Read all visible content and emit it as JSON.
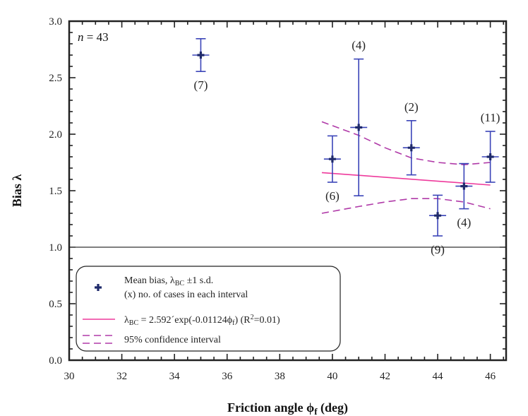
{
  "chart_data": {
    "type": "scatter",
    "title": "",
    "xlabel": "Friction angle",
    "xlabel_symbol": "ϕ",
    "xlabel_sub": "f",
    "xlabel_unit": "(deg)",
    "ylabel": "Bias λ",
    "xlim": [
      30,
      46.6
    ],
    "ylim": [
      0,
      3
    ],
    "xticks": [
      30,
      32,
      34,
      36,
      38,
      40,
      42,
      44,
      46
    ],
    "yticks": [
      "0.0",
      "0.5",
      "1.0",
      "1.5",
      "2.0",
      "2.5",
      "3.0"
    ],
    "grid": false,
    "annotation": {
      "italic": "n",
      "rest": " = 43"
    },
    "reference_line": {
      "y": 1.0,
      "color": "#555555"
    },
    "series": [
      {
        "name": "Mean bias, λBC ±1 s.d.",
        "color": "#1f2a6b",
        "errorbar_color": "#3a44b8",
        "points": [
          {
            "x": 35.0,
            "y": 2.7,
            "sd": 0.145,
            "count_label": "(7)",
            "label_pos": "below"
          },
          {
            "x": 40.0,
            "y": 1.78,
            "sd": 0.205,
            "count_label": "(6)",
            "label_pos": "below"
          },
          {
            "x": 41.0,
            "y": 2.06,
            "sd": 0.605,
            "count_label": "(4)",
            "label_pos": "above"
          },
          {
            "x": 43.0,
            "y": 1.88,
            "sd": 0.24,
            "count_label": "(2)",
            "label_pos": "above"
          },
          {
            "x": 44.0,
            "y": 1.28,
            "sd": 0.18,
            "count_label": "(9)",
            "label_pos": "below"
          },
          {
            "x": 45.0,
            "y": 1.54,
            "sd": 0.2,
            "count_label": "(4)",
            "label_pos": "below"
          },
          {
            "x": 46.0,
            "y": 1.8,
            "sd": 0.225,
            "count_label": "(11)",
            "label_pos": "above"
          }
        ]
      },
      {
        "name": "λBC = 2.592´exp(-0.01124ϕf) (R²=0.01)",
        "type": "line",
        "color": "#ee3a9c",
        "x": [
          39.6,
          46.0
        ],
        "y": [
          1.66,
          1.55
        ]
      },
      {
        "name": "95% confidence interval",
        "type": "line",
        "dash": true,
        "color": "#b03aa8",
        "upper": {
          "x": [
            39.6,
            41.0,
            42.0,
            43.0,
            44.0,
            45.0,
            46.0
          ],
          "y": [
            2.11,
            1.99,
            1.88,
            1.79,
            1.75,
            1.73,
            1.75
          ]
        },
        "lower": {
          "x": [
            39.6,
            41.0,
            42.0,
            43.0,
            44.0,
            45.0,
            46.0
          ],
          "y": [
            1.3,
            1.36,
            1.4,
            1.43,
            1.43,
            1.4,
            1.34
          ]
        }
      }
    ],
    "legend": {
      "placement": "bottom-left",
      "entries": [
        {
          "kind": "marker",
          "lines": [
            "Mean bias, λ",
            "BC",
            " ±1 s.d."
          ],
          "line2": "(x) no. of cases in each interval"
        },
        {
          "kind": "line",
          "parts": [
            "λ",
            "BC",
            " = 2.592´exp(-0.01124ϕ",
            "f",
            ") (R",
            "2",
            "=0.01)"
          ]
        },
        {
          "kind": "dashed",
          "text": "95% confidence interval"
        }
      ]
    }
  }
}
